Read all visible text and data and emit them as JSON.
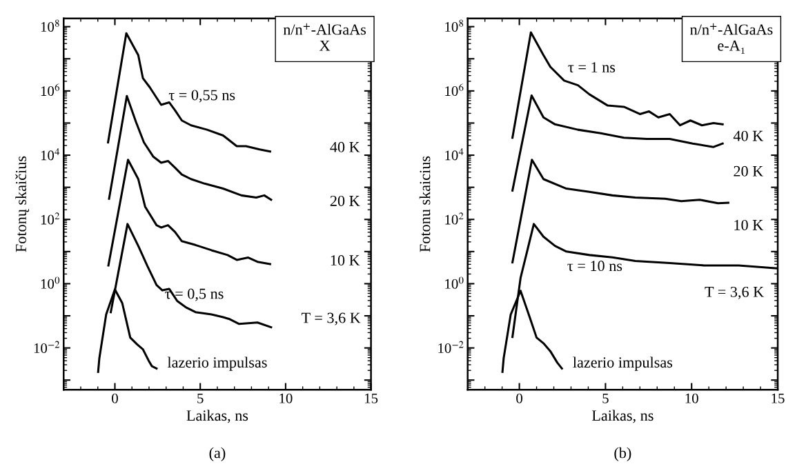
{
  "chart_data": [
    {
      "type": "line",
      "xlabel": "Laikas, ns",
      "ylabel": "Fotonų skaičius",
      "log": "y",
      "grid": false,
      "legend": false,
      "marker": "none",
      "line_style": "solid",
      "xlim": [
        -3,
        15
      ],
      "xticks": [
        0,
        5,
        10,
        15
      ],
      "ylim": [
        0.0005,
        180000000.0
      ],
      "yticks": [
        {
          "value": 0.001,
          "label": null
        },
        {
          "value": 0.01,
          "label": "10$^{−2}$"
        },
        {
          "value": 0.1,
          "label": null
        },
        {
          "value": 1,
          "label": "10$^{0}$"
        },
        {
          "value": 10,
          "label": null
        },
        {
          "value": 100,
          "label": "10$^{2}$"
        },
        {
          "value": 1000,
          "label": null
        },
        {
          "value": 10000,
          "label": "10$^{4}$"
        },
        {
          "value": 100000,
          "label": null
        },
        {
          "value": 1000000,
          "label": "10$^{6}$"
        },
        {
          "value": 10000000,
          "label": null
        },
        {
          "value": 100000000,
          "label": "10$^{8}$"
        }
      ],
      "series": [
        {
          "color": "#000000",
          "x": [
            -0.4,
            0.67,
            1.37,
            1.64,
            2.04,
            2.71,
            3.18,
            3.52,
            3.92,
            4.46,
            5.4,
            6.34,
            7.14,
            7.68,
            8.48,
            9.09
          ],
          "values": [
            25000.0,
            62000000.0,
            13000000.0,
            2500000.0,
            1300000.0,
            370000.0,
            440000.0,
            250000.0,
            120000.0,
            85000.0,
            62000.0,
            41000.0,
            19000.0,
            19000.0,
            15000.0,
            13000.0
          ]
        },
        {
          "color": "#000000",
          "x": [
            -0.34,
            0.7,
            1.23,
            1.7,
            2.24,
            2.71,
            3.11,
            3.52,
            3.92,
            4.46,
            5.26,
            6.34,
            7.41,
            8.28,
            8.75,
            9.15
          ],
          "values": [
            440,
            690000.0,
            110000.0,
            25000.0,
            9100,
            5800,
            6600,
            4100,
            2500,
            1800,
            1300,
            910,
            560,
            480,
            560,
            410
          ]
        },
        {
          "color": "#000000",
          "x": [
            -0.38,
            0.77,
            1.37,
            1.77,
            2.44,
            2.71,
            3.11,
            3.52,
            3.92,
            4.72,
            5.66,
            6.6,
            7.14,
            7.81,
            8.35,
            9.09
          ],
          "values": [
            3.7,
            7200,
            1800,
            250,
            66,
            56,
            66,
            41,
            21,
            16,
            11,
            7.8,
            5.5,
            6.5,
            4.8,
            4.1
          ]
        },
        {
          "color": "#000000",
          "x": [
            -0.24,
            0.74,
            1.37,
            1.91,
            2.44,
            2.78,
            3.18,
            3.65,
            4.19,
            4.72,
            5.66,
            6.34,
            6.74,
            7.28,
            8.35,
            9.15
          ],
          "values": [
            0.13,
            72,
            15,
            3.5,
            0.91,
            0.62,
            0.69,
            0.29,
            0.18,
            0.13,
            0.11,
            0.091,
            0.078,
            0.056,
            0.062,
            0.044
          ]
        },
        {
          "color": "#000000",
          "x": [
            -0.98,
            -0.91,
            -0.51,
            0,
            0.43,
            0.9,
            1.3,
            1.64,
            1.97,
            2.17,
            2.44
          ],
          "values": [
            0.0018,
            0.0048,
            0.11,
            0.66,
            0.25,
            0.021,
            0.013,
            0.0091,
            0.0041,
            0.0027,
            0.0023
          ]
        }
      ],
      "annotations": [
        "n/n$^{+}$-AlGaAs\nX",
        "(a)",
        "τ = 0,55 ns",
        "40 K",
        "20 K",
        "10 K",
        "τ = 0,5 ns",
        "T = 3,6 K",
        "lazerio impulsas"
      ]
    },
    {
      "type": "line",
      "xlabel": "Laikas, ns",
      "ylabel": "Fotonu skaicius",
      "log": "y",
      "grid": false,
      "legend": false,
      "marker": "none",
      "line_style": "solid",
      "xlim": [
        -3,
        15
      ],
      "xticks": [
        0,
        5,
        10,
        15
      ],
      "ylim": [
        0.0005,
        180000000.0
      ],
      "yticks": [
        {
          "value": 0.001,
          "label": null
        },
        {
          "value": 0.01,
          "label": "10$^{−2}$"
        },
        {
          "value": 0.1,
          "label": null
        },
        {
          "value": 1,
          "label": "10$^{0}$"
        },
        {
          "value": 10,
          "label": null
        },
        {
          "value": 100,
          "label": "10$^{2}$"
        },
        {
          "value": 1000,
          "label": null
        },
        {
          "value": 10000,
          "label": "10$^{4}$"
        },
        {
          "value": 100000,
          "label": null
        },
        {
          "value": 1000000,
          "label": "10$^{6}$"
        },
        {
          "value": 10000000,
          "label": null
        },
        {
          "value": 100000000,
          "label": "10$^{8}$"
        }
      ],
      "series": [
        {
          "color": "#000000",
          "x": [
            -0.4,
            0.67,
            1.4,
            1.8,
            2.6,
            3.4,
            4.07,
            5.13,
            6.07,
            7.0,
            7.53,
            8.07,
            8.73,
            9.33,
            9.93,
            10.6,
            11.27,
            11.8
          ],
          "values": [
            35000.0,
            66000000.0,
            13000000.0,
            5600000.0,
            2100000.0,
            1500000.0,
            780000.0,
            350000.0,
            320000.0,
            190000.0,
            230000.0,
            150000.0,
            190000.0,
            85000.0,
            120000.0,
            85000.0,
            100000.0,
            91000.0
          ]
        },
        {
          "color": "#000000",
          "x": [
            -0.4,
            0.71,
            1.4,
            2.07,
            3.4,
            4.73,
            6.07,
            7.4,
            8.73,
            10.07,
            11.27,
            11.8
          ],
          "values": [
            790,
            720000.0,
            150000.0,
            91000.0,
            62000.0,
            48000.0,
            35000.0,
            32000.0,
            32000.0,
            23000.0,
            18000.0,
            23000.0
          ]
        },
        {
          "color": "#000000",
          "x": [
            -0.4,
            0.73,
            1.4,
            2.73,
            4.07,
            5.4,
            6.73,
            8.47,
            9.4,
            10.47,
            11.53,
            12.13
          ],
          "values": [
            4.6,
            7200,
            1800,
            910,
            720,
            560,
            480,
            440,
            370,
            410,
            320,
            330
          ]
        },
        {
          "color": "#000000",
          "x": [
            -0.4,
            0.07,
            0.84,
            1.4,
            2.07,
            2.73,
            4.07,
            5.4,
            6.73,
            8.73,
            10.73,
            12.73,
            14.93
          ],
          "values": [
            0.022,
            1.5,
            72,
            29,
            15,
            10,
            7.8,
            6.6,
            5.1,
            4.4,
            3.7,
            3.7,
            3.0
          ]
        },
        {
          "color": "#000000",
          "x": [
            -0.98,
            -0.91,
            -0.5,
            0.07,
            0.6,
            1.0,
            1.4,
            1.8,
            2.2,
            2.47
          ],
          "values": [
            0.0018,
            0.0048,
            0.11,
            0.6,
            0.091,
            0.021,
            0.014,
            0.0079,
            0.0035,
            0.0023
          ]
        }
      ],
      "annotations": [
        "n/n$^{+}$-AlGaAs\ne-A₁",
        "(b)",
        "τ = 1 ns",
        "40 K",
        "20 K",
        "10 K",
        "τ = 10 ns",
        "T = 3,6 K",
        "lazerio impulsas"
      ]
    }
  ]
}
